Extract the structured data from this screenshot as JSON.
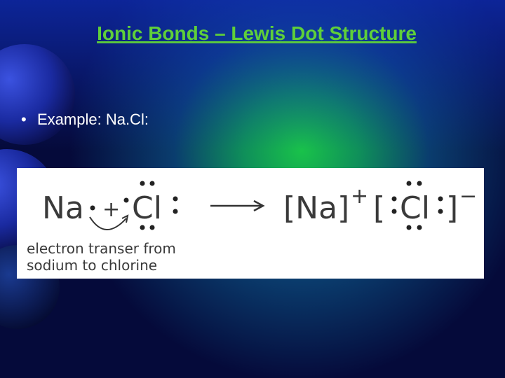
{
  "title": "Ionic Bonds – Lewis Dot Structure",
  "bullets": [
    "Example: Na.Cl:"
  ],
  "figure": {
    "reactant_na": "Na",
    "plus": "+",
    "reactant_cl": "Cl",
    "product_na": "[Na]",
    "product_na_charge": "+",
    "bracket_open": "[",
    "product_cl": "Cl",
    "bracket_close": "]",
    "product_cl_charge": "−",
    "caption": [
      "electron transer from",
      "sodium to chlorine"
    ]
  }
}
